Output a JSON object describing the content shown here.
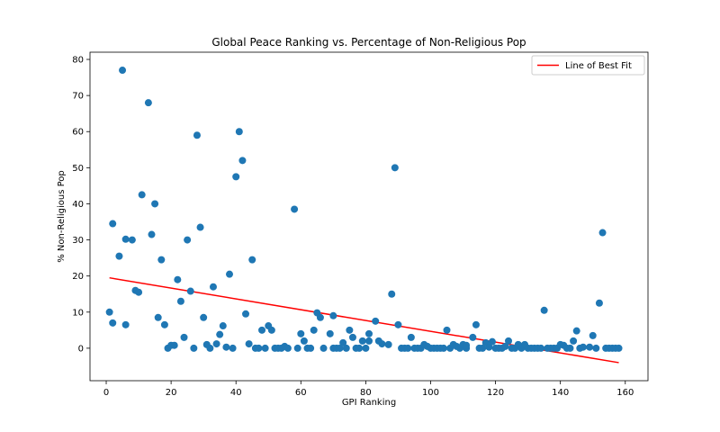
{
  "chart_data": {
    "type": "scatter",
    "title": "Global Peace Ranking vs. Percentage of Non-Religious Pop",
    "xlabel": "GPI Ranking",
    "ylabel": "% Non-Religious Pop",
    "xlim": [
      -5,
      167
    ],
    "ylim": [
      -9,
      82
    ],
    "xticks": [
      0,
      20,
      40,
      60,
      80,
      100,
      120,
      140,
      160
    ],
    "yticks": [
      0,
      10,
      20,
      30,
      40,
      50,
      60,
      70,
      80
    ],
    "legend": {
      "position": "top-right",
      "entries": [
        "Line of Best Fit"
      ]
    },
    "grid": false,
    "colors": {
      "points": "#1f77b4",
      "fit_line": "#ff0000"
    },
    "fit_line": {
      "name": "Line of Best Fit",
      "x": [
        1,
        158
      ],
      "y": [
        19.5,
        -4.0
      ]
    },
    "points": [
      [
        1,
        10
      ],
      [
        2,
        34.5
      ],
      [
        2,
        7
      ],
      [
        4,
        25.5
      ],
      [
        5,
        77
      ],
      [
        6,
        30.2
      ],
      [
        6,
        6.5
      ],
      [
        8,
        30
      ],
      [
        9,
        16
      ],
      [
        10,
        15.5
      ],
      [
        11,
        42.5
      ],
      [
        13,
        68
      ],
      [
        14,
        31.5
      ],
      [
        15,
        40
      ],
      [
        16,
        8.5
      ],
      [
        17,
        24.5
      ],
      [
        18,
        6.5
      ],
      [
        19,
        0
      ],
      [
        20,
        0.8
      ],
      [
        21,
        0.8
      ],
      [
        22,
        19
      ],
      [
        23,
        13
      ],
      [
        24,
        3
      ],
      [
        25,
        30
      ],
      [
        26,
        15.8
      ],
      [
        27,
        0
      ],
      [
        28,
        59
      ],
      [
        29,
        33.5
      ],
      [
        30,
        8.5
      ],
      [
        31,
        1
      ],
      [
        32,
        0
      ],
      [
        33,
        17
      ],
      [
        34,
        1.2
      ],
      [
        35,
        3.8
      ],
      [
        36,
        6.2
      ],
      [
        37,
        0.3
      ],
      [
        38,
        20.5
      ],
      [
        39,
        0
      ],
      [
        40,
        47.5
      ],
      [
        41,
        60
      ],
      [
        42,
        52
      ],
      [
        43,
        9.5
      ],
      [
        44,
        1.2
      ],
      [
        45,
        24.5
      ],
      [
        46,
        0
      ],
      [
        47,
        0
      ],
      [
        48,
        5
      ],
      [
        49,
        0
      ],
      [
        50,
        6.2
      ],
      [
        51,
        5
      ],
      [
        52,
        0
      ],
      [
        53,
        0
      ],
      [
        54,
        0
      ],
      [
        55,
        0.5
      ],
      [
        56,
        0
      ],
      [
        58,
        38.5
      ],
      [
        59,
        0
      ],
      [
        60,
        4
      ],
      [
        61,
        2
      ],
      [
        62,
        0
      ],
      [
        63,
        0
      ],
      [
        64,
        5
      ],
      [
        65,
        9.8
      ],
      [
        66,
        8.5
      ],
      [
        67,
        0
      ],
      [
        69,
        4
      ],
      [
        70,
        9
      ],
      [
        70,
        0
      ],
      [
        71,
        0
      ],
      [
        72,
        0
      ],
      [
        73,
        1.5
      ],
      [
        74,
        0
      ],
      [
        75,
        5
      ],
      [
        76,
        3
      ],
      [
        77,
        0
      ],
      [
        78,
        0
      ],
      [
        79,
        2
      ],
      [
        80,
        0
      ],
      [
        81,
        4
      ],
      [
        81,
        2
      ],
      [
        83,
        7.5
      ],
      [
        84,
        2
      ],
      [
        85,
        1.2
      ],
      [
        87,
        1
      ],
      [
        88,
        15
      ],
      [
        89,
        50
      ],
      [
        90,
        6.5
      ],
      [
        91,
        0
      ],
      [
        92,
        0
      ],
      [
        93,
        0
      ],
      [
        94,
        3
      ],
      [
        95,
        0
      ],
      [
        96,
        0
      ],
      [
        97,
        0
      ],
      [
        98,
        1
      ],
      [
        99,
        0.5
      ],
      [
        100,
        0
      ],
      [
        101,
        0
      ],
      [
        102,
        0
      ],
      [
        103,
        0
      ],
      [
        104,
        0
      ],
      [
        105,
        5
      ],
      [
        106,
        0
      ],
      [
        107,
        1
      ],
      [
        108,
        0.5
      ],
      [
        109,
        0
      ],
      [
        110,
        1
      ],
      [
        111,
        0
      ],
      [
        111,
        0.8
      ],
      [
        113,
        3
      ],
      [
        114,
        6.5
      ],
      [
        115,
        0
      ],
      [
        116,
        0
      ],
      [
        117,
        1.5
      ],
      [
        118,
        0.3
      ],
      [
        119,
        1.8
      ],
      [
        120,
        0
      ],
      [
        121,
        0
      ],
      [
        122,
        0
      ],
      [
        123,
        0.5
      ],
      [
        124,
        2
      ],
      [
        125,
        0
      ],
      [
        126,
        0
      ],
      [
        127,
        1
      ],
      [
        128,
        0
      ],
      [
        129,
        1
      ],
      [
        130,
        0
      ],
      [
        131,
        0
      ],
      [
        132,
        0
      ],
      [
        133,
        0
      ],
      [
        134,
        0
      ],
      [
        135,
        10.5
      ],
      [
        136,
        0
      ],
      [
        137,
        0
      ],
      [
        138,
        0
      ],
      [
        139,
        0
      ],
      [
        140,
        1
      ],
      [
        141,
        0.8
      ],
      [
        142,
        0
      ],
      [
        143,
        0
      ],
      [
        144,
        2
      ],
      [
        145,
        4.8
      ],
      [
        146,
        0
      ],
      [
        147,
        0.3
      ],
      [
        149,
        0.3
      ],
      [
        150,
        3.5
      ],
      [
        151,
        0
      ],
      [
        152,
        12.5
      ],
      [
        153,
        32
      ],
      [
        154,
        0
      ],
      [
        155,
        0
      ],
      [
        156,
        0
      ],
      [
        157,
        0
      ],
      [
        158,
        0
      ]
    ]
  }
}
